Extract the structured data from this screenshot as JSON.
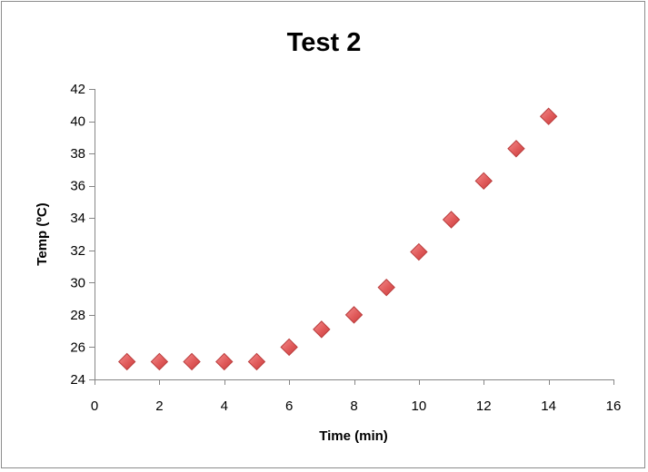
{
  "chart_data": {
    "type": "scatter",
    "title": "Test 2",
    "xlabel": "Time (min)",
    "ylabel": "Temp (ºC)",
    "xlim": [
      0,
      16
    ],
    "ylim": [
      24,
      42
    ],
    "x_ticks": [
      "0",
      "2",
      "4",
      "6",
      "8",
      "10",
      "12",
      "14",
      "16"
    ],
    "y_ticks": [
      "24",
      "26",
      "28",
      "30",
      "32",
      "34",
      "36",
      "38",
      "40",
      "42"
    ],
    "grid": false,
    "legend": "none",
    "marker": "diamond",
    "marker_color": "#e05a5a",
    "x": [
      1,
      2,
      3,
      4,
      5,
      6,
      7,
      8,
      9,
      10,
      11,
      12,
      13,
      14
    ],
    "y": [
      25.1,
      25.1,
      25.1,
      25.1,
      25.1,
      26.0,
      27.1,
      28.0,
      29.7,
      31.9,
      33.9,
      36.3,
      38.3,
      40.3
    ]
  }
}
